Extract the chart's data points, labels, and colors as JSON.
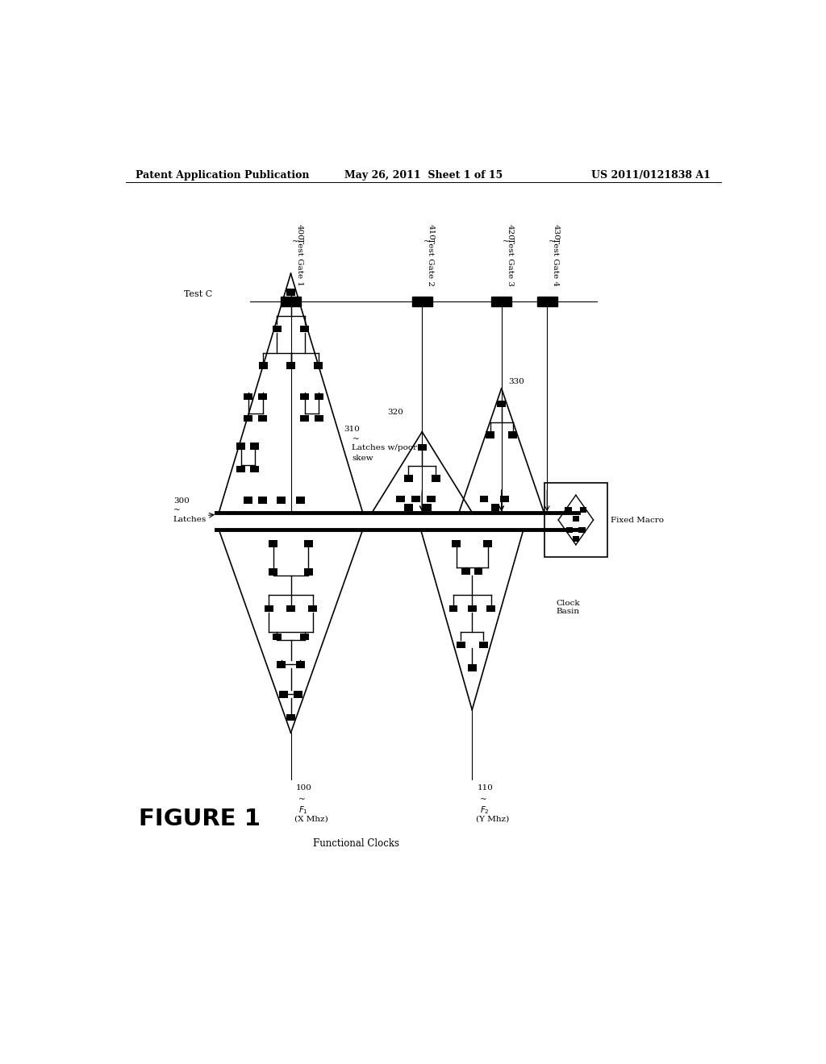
{
  "bg_color": "#ffffff",
  "header_left": "Patent Application Publication",
  "header_mid": "May 26, 2011  Sheet 1 of 15",
  "header_right": "US 2011/0121838 A1",
  "figure_label": "FIGURE 1"
}
